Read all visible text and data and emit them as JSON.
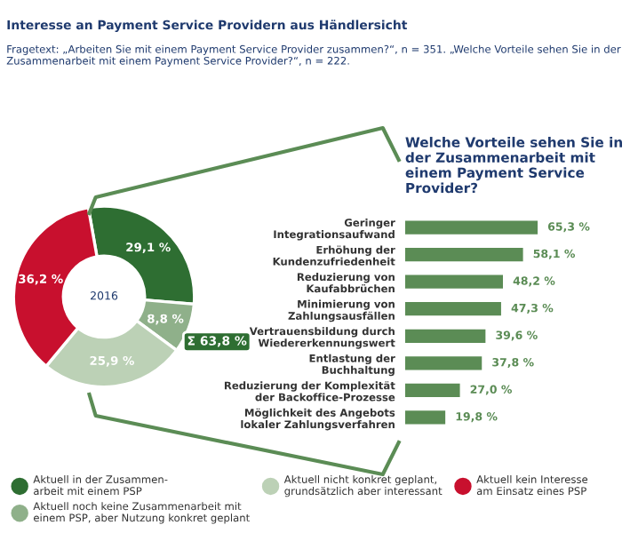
{
  "chart_data": [
    {
      "type": "donut",
      "title": "Interesse an Payment Service Providern aus Händlersicht",
      "subtitle": "Fragetext: „Arbeiten Sie mit einem Payment Service Provider zusammen?“, n = 351. „Welche Vorteile sehen Sie in der Zusammenarbeit mit einem Payment Service Provider?“, n = 222.",
      "categories": [
        "Aktuell in der Zusammen-\narbeit mit einem PSP",
        "Aktuell noch keine Zusammenarbeit mit\neinem PSP, aber Nutzung konkret geplant",
        "Aktuell nicht konkret geplant,\ngrundsätzlich aber interessant",
        "Aktuell kein Interesse\nam Einsatz eines PSP"
      ],
      "values": [
        29.1,
        8.8,
        25.9,
        36.2
      ],
      "colors": [
        "#2e6e32",
        "#8fb08a",
        "#bcd1b6",
        "#c8102e"
      ],
      "value_labels": [
        "29,1 %",
        "8,8 %",
        "25,9 %",
        "36,2 %"
      ],
      "annotations": [
        "2016",
        "Σ 63,8 %"
      ],
      "legend": "bottom"
    },
    {
      "type": "bar",
      "orientation": "horizontal",
      "title": "Welche Vorteile sehen Sie in der Zusammenarbeit mit einem Payment Service Provider?",
      "categories": [
        "Geringer\nIntegrationsaufwand",
        "Erhöhung der\nKundenzufriedenheit",
        "Reduzierung von\nKaufabbrüchen",
        "Minimierung von\nZahlungsausfällen",
        "Vertrauensbildung durch\nWiedererkennungswert",
        "Entlastung der\nBuchhaltung",
        "Reduzierung der Komplexität\nder Backoffice-Prozesse",
        "Möglichkeit des Angebots\nlokaler Zahlungsverfahren"
      ],
      "values": [
        65.3,
        58.1,
        48.2,
        47.3,
        39.6,
        37.8,
        27.0,
        19.8
      ],
      "color": "#5b8c55",
      "value_labels": [
        "65,3 %",
        "58,1 %",
        "48,2 %",
        "47,3 %",
        "39,6 %",
        "37,8 %",
        "27,0 %",
        "19,8 %"
      ],
      "tick_labels": "y"
    }
  ]
}
